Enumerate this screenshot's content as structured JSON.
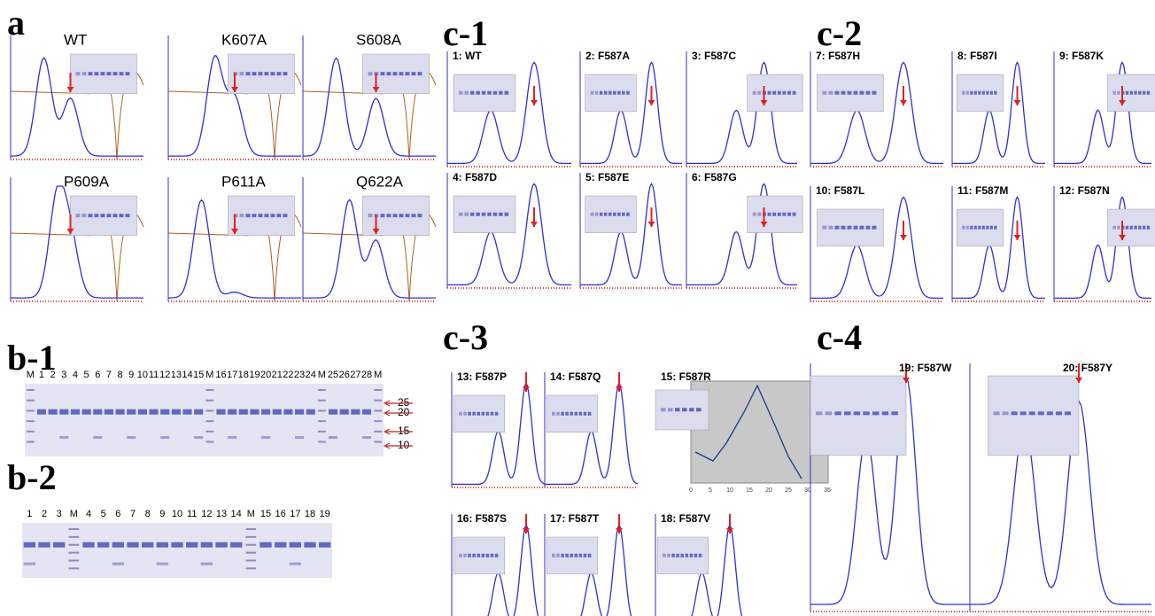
{
  "panel_a": {
    "label": "a",
    "plots": [
      "WT",
      "K607A",
      "S608A",
      "P609A",
      "P611A",
      "Q622A"
    ]
  },
  "panel_b1": {
    "label": "b-1",
    "lanes": [
      "M",
      "1",
      "2",
      "3",
      "4",
      "5",
      "6",
      "7",
      "8",
      "9",
      "10",
      "11",
      "12",
      "13",
      "14",
      "15",
      "M",
      "16",
      "17",
      "18",
      "19",
      "20",
      "21",
      "22",
      "23",
      "24",
      "M",
      "25",
      "26",
      "27",
      "28",
      "M"
    ],
    "markers": [
      "25",
      "20",
      "15",
      "10"
    ]
  },
  "panel_b2": {
    "label": "b-2",
    "lanes": [
      "1",
      "2",
      "3",
      "M",
      "4",
      "5",
      "6",
      "7",
      "8",
      "9",
      "10",
      "11",
      "12",
      "13",
      "14",
      "M",
      "15",
      "16",
      "17",
      "18",
      "19"
    ]
  },
  "panel_c1": {
    "label": "c-1",
    "plots": [
      "1: WT",
      "2: F587A",
      "3: F587C",
      "4: F587D",
      "5: F587E",
      "6: F587G"
    ]
  },
  "panel_c2": {
    "label": "c-2",
    "plots": [
      "7: F587H",
      "8: F587I",
      "9: F587K",
      "10: F587L",
      "11: F587M",
      "12: F587N"
    ]
  },
  "panel_c3": {
    "label": "c-3",
    "plots": [
      "13: F587P",
      "14: F587Q",
      "15: F587R",
      "16: F587S",
      "17: F587T",
      "18: F587V"
    ],
    "inset_xticks": [
      "0",
      "5",
      "10",
      "15",
      "20",
      "25",
      "30",
      "35"
    ]
  },
  "panel_c4": {
    "label": "c-4",
    "plots": [
      "19: F587W",
      "20: F587Y"
    ]
  }
}
